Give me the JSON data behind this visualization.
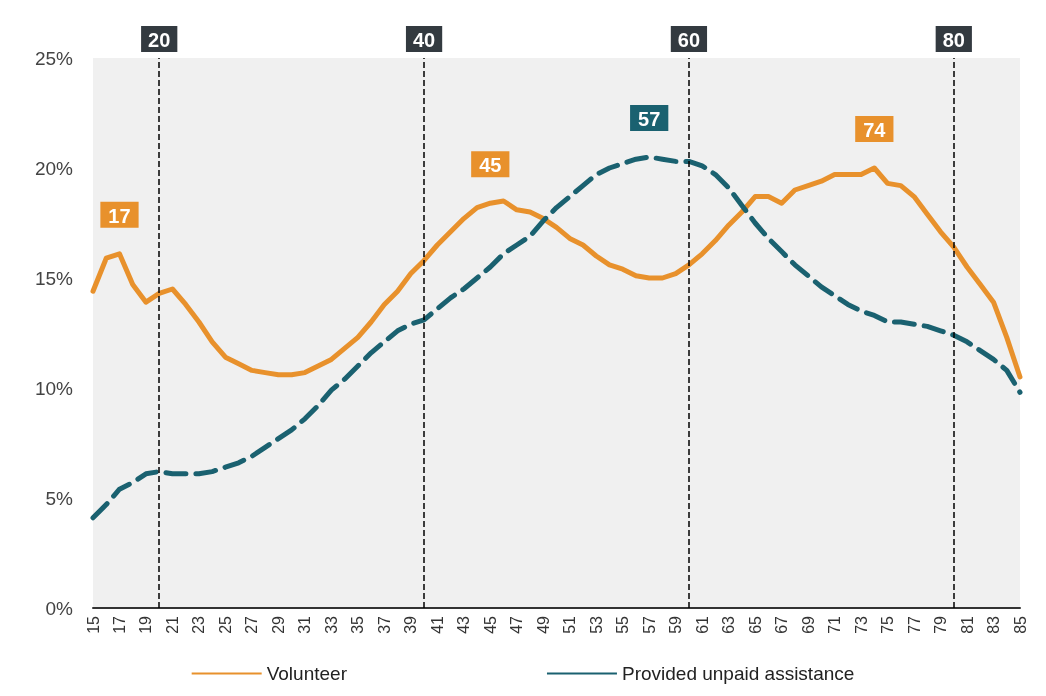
{
  "chart_data": {
    "type": "line",
    "x": [
      15,
      16,
      17,
      18,
      19,
      20,
      21,
      22,
      23,
      24,
      25,
      26,
      27,
      28,
      29,
      30,
      31,
      32,
      33,
      34,
      35,
      36,
      37,
      38,
      39,
      40,
      41,
      42,
      43,
      44,
      45,
      46,
      47,
      48,
      49,
      50,
      51,
      52,
      53,
      54,
      55,
      56,
      57,
      58,
      59,
      60,
      61,
      62,
      63,
      64,
      65,
      66,
      67,
      68,
      69,
      70,
      71,
      72,
      73,
      74,
      75,
      76,
      77,
      78,
      79,
      80,
      81,
      82,
      83,
      84,
      85
    ],
    "xlim": [
      15,
      85
    ],
    "xticks": [
      15,
      17,
      19,
      21,
      23,
      25,
      27,
      29,
      31,
      33,
      35,
      37,
      39,
      41,
      43,
      45,
      47,
      49,
      51,
      53,
      55,
      57,
      59,
      61,
      63,
      65,
      67,
      69,
      71,
      73,
      75,
      77,
      79,
      81,
      83,
      85
    ],
    "series": [
      {
        "name": "Volunteer",
        "color": "#e8912c",
        "line_style": "solid",
        "values": [
          14.4,
          15.9,
          16.1,
          14.7,
          13.9,
          14.3,
          14.5,
          13.8,
          13.0,
          12.1,
          11.4,
          11.1,
          10.8,
          10.7,
          10.6,
          10.6,
          10.7,
          11.0,
          11.3,
          11.8,
          12.3,
          13.0,
          13.8,
          14.4,
          15.2,
          15.8,
          16.5,
          17.1,
          17.7,
          18.2,
          18.4,
          18.5,
          18.1,
          18.0,
          17.7,
          17.3,
          16.8,
          16.5,
          16.0,
          15.6,
          15.4,
          15.1,
          15.0,
          15.0,
          15.2,
          15.6,
          16.1,
          16.7,
          17.4,
          18.0,
          18.7,
          18.7,
          18.4,
          19.0,
          19.2,
          19.4,
          19.7,
          19.7,
          19.7,
          20.0,
          19.3,
          19.2,
          18.7,
          17.9,
          17.1,
          16.4,
          15.5,
          14.7,
          13.9,
          12.3,
          10.5
        ]
      },
      {
        "name": "Provided unpaid assistance",
        "color": "#1a6170",
        "line_style": "dashed",
        "values": [
          4.1,
          4.7,
          5.4,
          5.7,
          6.1,
          6.2,
          6.1,
          6.1,
          6.1,
          6.2,
          6.4,
          6.6,
          6.9,
          7.3,
          7.7,
          8.1,
          8.6,
          9.2,
          9.9,
          10.4,
          11.0,
          11.6,
          12.1,
          12.6,
          12.9,
          13.1,
          13.6,
          14.1,
          14.5,
          15.0,
          15.5,
          16.1,
          16.5,
          16.9,
          17.6,
          18.2,
          18.7,
          19.2,
          19.7,
          20.0,
          20.2,
          20.4,
          20.5,
          20.4,
          20.3,
          20.3,
          20.1,
          19.7,
          19.1,
          18.3,
          17.5,
          16.8,
          16.2,
          15.6,
          15.1,
          14.6,
          14.2,
          13.8,
          13.5,
          13.3,
          13.0,
          13.0,
          12.9,
          12.8,
          12.6,
          12.4,
          12.1,
          11.7,
          11.3,
          10.8,
          9.8
        ]
      }
    ],
    "ylim": [
      0,
      25
    ],
    "yticks": [
      {
        "value": 0,
        "label": "0%"
      },
      {
        "value": 5,
        "label": "5%"
      },
      {
        "value": 10,
        "label": "10%"
      },
      {
        "value": 15,
        "label": "15%"
      },
      {
        "value": 20,
        "label": "20%"
      },
      {
        "value": 25,
        "label": "25%"
      }
    ],
    "ref_lines": [
      {
        "axis": "x",
        "value": 20,
        "label": "20",
        "color": "#000000",
        "line_style": "dashed"
      },
      {
        "axis": "x",
        "value": 40,
        "label": "40",
        "color": "#000000",
        "line_style": "dashed"
      },
      {
        "axis": "x",
        "value": 60,
        "label": "60",
        "color": "#000000",
        "line_style": "dashed"
      },
      {
        "axis": "x",
        "value": 80,
        "label": "80",
        "color": "#000000",
        "line_style": "dashed"
      }
    ],
    "annotations": [
      {
        "text": "17",
        "x": 17,
        "y": 16.1
      },
      {
        "text": "45",
        "x": 45,
        "y": 18.4
      },
      {
        "text": "57",
        "x": 57,
        "y": 20.5
      },
      {
        "text": "74",
        "x": 74,
        "y": 20.0
      }
    ],
    "grid": false,
    "legend": "bottom",
    "marker": "none"
  }
}
